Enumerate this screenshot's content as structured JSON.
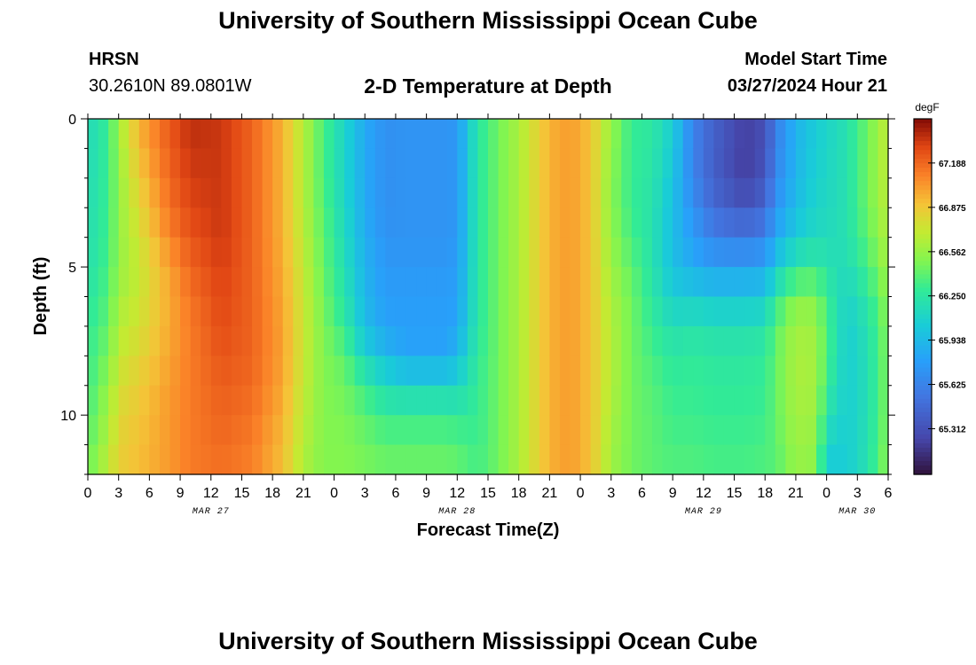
{
  "header": {
    "title": "University of Southern Mississippi Ocean Cube",
    "station": "HRSN",
    "coords": "30.2610N  89.0801W",
    "subtitle": "2-D Temperature at Depth",
    "model_label": "Model Start Time",
    "model_time": "03/27/2024 Hour 21"
  },
  "footer": {
    "title": "University of Southern Mississippi Ocean Cube"
  },
  "chart_data": {
    "type": "heatmap",
    "title": "2-D Temperature at Depth",
    "xlabel": "Forecast Time(Z)",
    "ylabel": "Depth (ft)",
    "x_unit": "hours since 2024-03-27 00Z",
    "xlim": [
      0,
      78
    ],
    "ylim": [
      0,
      12
    ],
    "x_ticks": [
      {
        "h": 0,
        "label": "0"
      },
      {
        "h": 3,
        "label": "3"
      },
      {
        "h": 6,
        "label": "6"
      },
      {
        "h": 9,
        "label": "9"
      },
      {
        "h": 12,
        "label": "12"
      },
      {
        "h": 15,
        "label": "15"
      },
      {
        "h": 18,
        "label": "18"
      },
      {
        "h": 21,
        "label": "21"
      },
      {
        "h": 24,
        "label": "0"
      },
      {
        "h": 27,
        "label": "3"
      },
      {
        "h": 30,
        "label": "6"
      },
      {
        "h": 33,
        "label": "9"
      },
      {
        "h": 36,
        "label": "12"
      },
      {
        "h": 39,
        "label": "15"
      },
      {
        "h": 42,
        "label": "18"
      },
      {
        "h": 45,
        "label": "21"
      },
      {
        "h": 48,
        "label": "0"
      },
      {
        "h": 51,
        "label": "3"
      },
      {
        "h": 54,
        "label": "6"
      },
      {
        "h": 57,
        "label": "9"
      },
      {
        "h": 60,
        "label": "12"
      },
      {
        "h": 63,
        "label": "15"
      },
      {
        "h": 66,
        "label": "18"
      },
      {
        "h": 69,
        "label": "21"
      },
      {
        "h": 72,
        "label": "0"
      },
      {
        "h": 75,
        "label": "3"
      },
      {
        "h": 78,
        "label": "6"
      }
    ],
    "date_labels": [
      {
        "h": 12,
        "label": "MAR 27"
      },
      {
        "h": 36,
        "label": "MAR 28"
      },
      {
        "h": 60,
        "label": "MAR 29"
      },
      {
        "h": 75,
        "label": "MAR 30"
      }
    ],
    "y_ticks": [
      0,
      5,
      10
    ],
    "colorbar": {
      "unit": "degF",
      "min": 64.99,
      "max": 67.5,
      "ticks": [
        65.312,
        65.625,
        65.938,
        66.25,
        66.562,
        66.875,
        67.188
      ],
      "tick_labels": [
        "65.312",
        "65.625",
        "65.938",
        "66.250",
        "66.562",
        "66.875",
        "67.188"
      ]
    },
    "depths_ft": [
      0,
      1,
      2,
      3,
      4,
      5,
      6,
      7,
      8,
      9,
      10,
      11,
      12
    ],
    "profiles": [
      {
        "h": 0,
        "temps": [
          66.15,
          66.15,
          66.16,
          66.17,
          66.18,
          66.2,
          66.24,
          66.28,
          66.3,
          66.32,
          66.36,
          66.4,
          66.45
        ]
      },
      {
        "h": 2,
        "temps": [
          66.3,
          66.3,
          66.31,
          66.32,
          66.33,
          66.35,
          66.38,
          66.42,
          66.48,
          66.55,
          66.6,
          66.65,
          66.7
        ]
      },
      {
        "h": 3,
        "temps": [
          66.6,
          66.58,
          66.55,
          66.55,
          66.55,
          66.55,
          66.6,
          66.65,
          66.7,
          66.75,
          66.8,
          66.82,
          66.85
        ]
      },
      {
        "h": 5,
        "temps": [
          66.95,
          66.92,
          66.85,
          66.8,
          66.75,
          66.7,
          66.72,
          66.75,
          66.8,
          66.85,
          66.88,
          66.9,
          66.92
        ]
      },
      {
        "h": 8,
        "temps": [
          67.25,
          67.22,
          67.2,
          67.15,
          67.1,
          67.0,
          66.98,
          66.98,
          67.0,
          67.02,
          67.03,
          67.03,
          67.03
        ]
      },
      {
        "h": 10,
        "temps": [
          67.38,
          67.36,
          67.33,
          67.3,
          67.25,
          67.2,
          67.15,
          67.12,
          67.12,
          67.12,
          67.12,
          67.12,
          67.12
        ]
      },
      {
        "h": 13,
        "temps": [
          67.35,
          67.35,
          67.35,
          67.35,
          67.35,
          67.32,
          67.3,
          67.28,
          67.25,
          67.22,
          67.2,
          67.18,
          67.15
        ]
      },
      {
        "h": 16,
        "temps": [
          67.2,
          67.2,
          67.2,
          67.2,
          67.2,
          67.2,
          67.2,
          67.2,
          67.2,
          67.18,
          67.15,
          67.12,
          67.1
        ]
      },
      {
        "h": 19,
        "temps": [
          66.95,
          66.95,
          66.95,
          66.95,
          66.95,
          66.97,
          66.98,
          67.0,
          67.0,
          66.98,
          66.95,
          66.92,
          66.9
        ]
      },
      {
        "h": 21,
        "temps": [
          66.65,
          66.65,
          66.65,
          66.65,
          66.68,
          66.7,
          66.72,
          66.72,
          66.72,
          66.7,
          66.68,
          66.65,
          66.62
        ]
      },
      {
        "h": 23,
        "temps": [
          66.35,
          66.35,
          66.35,
          66.38,
          66.4,
          66.42,
          66.45,
          66.48,
          66.5,
          66.5,
          66.5,
          66.5,
          66.5
        ]
      },
      {
        "h": 25,
        "temps": [
          66.1,
          66.1,
          66.1,
          66.12,
          66.15,
          66.18,
          66.22,
          66.28,
          66.4,
          66.45,
          66.48,
          66.5,
          66.5
        ]
      },
      {
        "h": 27,
        "temps": [
          65.85,
          65.85,
          65.85,
          65.85,
          65.87,
          65.9,
          65.92,
          65.95,
          66.1,
          66.3,
          66.4,
          66.45,
          66.48
        ]
      },
      {
        "h": 29,
        "temps": [
          65.7,
          65.7,
          65.7,
          65.7,
          65.72,
          65.75,
          65.78,
          65.8,
          65.95,
          66.15,
          66.3,
          66.4,
          66.45
        ]
      },
      {
        "h": 31,
        "temps": [
          65.72,
          65.72,
          65.72,
          65.72,
          65.72,
          65.75,
          65.78,
          65.78,
          65.82,
          66.1,
          66.3,
          66.4,
          66.45
        ]
      },
      {
        "h": 35,
        "temps": [
          65.72,
          65.72,
          65.72,
          65.72,
          65.72,
          65.75,
          65.78,
          65.78,
          65.82,
          66.1,
          66.3,
          66.4,
          66.45
        ]
      },
      {
        "h": 36,
        "temps": [
          65.75,
          65.75,
          65.75,
          65.75,
          65.75,
          65.78,
          65.8,
          65.82,
          65.95,
          66.1,
          66.28,
          66.38,
          66.43
        ]
      },
      {
        "h": 38,
        "temps": [
          66.25,
          66.25,
          66.25,
          66.25,
          66.25,
          66.25,
          66.25,
          66.25,
          66.28,
          66.3,
          66.3,
          66.32,
          66.35
        ]
      },
      {
        "h": 40,
        "temps": [
          66.45,
          66.45,
          66.45,
          66.45,
          66.45,
          66.45,
          66.45,
          66.45,
          66.45,
          66.45,
          66.45,
          66.45,
          66.45
        ]
      },
      {
        "h": 42,
        "temps": [
          66.62,
          66.62,
          66.62,
          66.62,
          66.62,
          66.62,
          66.62,
          66.62,
          66.62,
          66.62,
          66.62,
          66.62,
          66.62
        ]
      },
      {
        "h": 45,
        "temps": [
          66.95,
          66.95,
          66.95,
          66.95,
          66.95,
          66.95,
          66.95,
          66.95,
          66.95,
          66.95,
          66.95,
          66.95,
          66.95
        ]
      },
      {
        "h": 47,
        "temps": [
          67.02,
          67.02,
          67.02,
          67.02,
          67.02,
          67.02,
          67.02,
          67.02,
          67.02,
          67.02,
          67.02,
          67.02,
          67.02
        ]
      },
      {
        "h": 49,
        "temps": [
          66.9,
          66.9,
          66.9,
          66.9,
          66.9,
          66.9,
          66.9,
          66.9,
          66.9,
          66.9,
          66.9,
          66.9,
          66.9
        ]
      },
      {
        "h": 51,
        "temps": [
          66.55,
          66.55,
          66.52,
          66.52,
          66.55,
          66.58,
          66.62,
          66.65,
          66.65,
          66.65,
          66.62,
          66.6,
          66.58
        ]
      },
      {
        "h": 53,
        "temps": [
          66.3,
          66.3,
          66.3,
          66.3,
          66.35,
          66.4,
          66.45,
          66.45,
          66.45,
          66.45,
          66.45,
          66.45,
          66.45
        ]
      },
      {
        "h": 55,
        "temps": [
          66.25,
          66.25,
          66.22,
          66.22,
          66.2,
          66.22,
          66.25,
          66.3,
          66.35,
          66.38,
          66.4,
          66.4,
          66.4
        ]
      },
      {
        "h": 57,
        "temps": [
          66.05,
          66.05,
          66.0,
          65.98,
          65.95,
          65.98,
          66.05,
          66.18,
          66.25,
          66.3,
          66.32,
          66.35,
          66.38
        ]
      },
      {
        "h": 59,
        "temps": [
          65.62,
          65.62,
          65.62,
          65.7,
          65.78,
          65.85,
          66.05,
          66.2,
          66.28,
          66.3,
          66.32,
          66.35,
          66.38
        ]
      },
      {
        "h": 61,
        "temps": [
          65.42,
          65.4,
          65.4,
          65.48,
          65.6,
          65.8,
          66.0,
          66.18,
          66.25,
          66.28,
          66.3,
          66.33,
          66.35
        ]
      },
      {
        "h": 64,
        "temps": [
          65.22,
          65.2,
          65.2,
          65.35,
          65.55,
          65.8,
          66.0,
          66.18,
          66.25,
          66.28,
          66.3,
          66.33,
          66.35
        ]
      },
      {
        "h": 66,
        "temps": [
          65.3,
          65.3,
          65.35,
          65.45,
          65.62,
          65.82,
          66.02,
          66.2,
          66.28,
          66.3,
          66.32,
          66.35,
          66.38
        ]
      },
      {
        "h": 67,
        "temps": [
          65.6,
          65.6,
          65.65,
          65.72,
          65.85,
          66.02,
          66.25,
          66.4,
          66.42,
          66.42,
          66.42,
          66.4,
          66.38
        ]
      },
      {
        "h": 69,
        "temps": [
          65.9,
          65.9,
          65.92,
          65.95,
          66.05,
          66.25,
          66.5,
          66.6,
          66.62,
          66.62,
          66.6,
          66.58,
          66.55
        ]
      },
      {
        "h": 71,
        "temps": [
          66.05,
          66.05,
          66.08,
          66.1,
          66.15,
          66.3,
          66.5,
          66.58,
          66.6,
          66.6,
          66.58,
          66.55,
          66.52
        ]
      },
      {
        "h": 72,
        "temps": [
          66.1,
          66.1,
          66.12,
          66.12,
          66.15,
          66.2,
          66.3,
          66.35,
          66.35,
          66.3,
          66.2,
          66.1,
          66.0
        ]
      },
      {
        "h": 74,
        "temps": [
          66.2,
          66.2,
          66.2,
          66.2,
          66.2,
          66.15,
          66.1,
          66.05,
          66.05,
          66.05,
          66.05,
          66.05,
          66.05
        ]
      },
      {
        "h": 76,
        "temps": [
          66.45,
          66.45,
          66.45,
          66.45,
          66.4,
          66.35,
          66.25,
          66.2,
          66.18,
          66.18,
          66.18,
          66.2,
          66.2
        ]
      },
      {
        "h": 78,
        "temps": [
          66.7,
          66.7,
          66.7,
          66.68,
          66.65,
          66.6,
          66.55,
          66.52,
          66.5,
          66.5,
          66.5,
          66.52,
          66.55
        ]
      }
    ]
  }
}
